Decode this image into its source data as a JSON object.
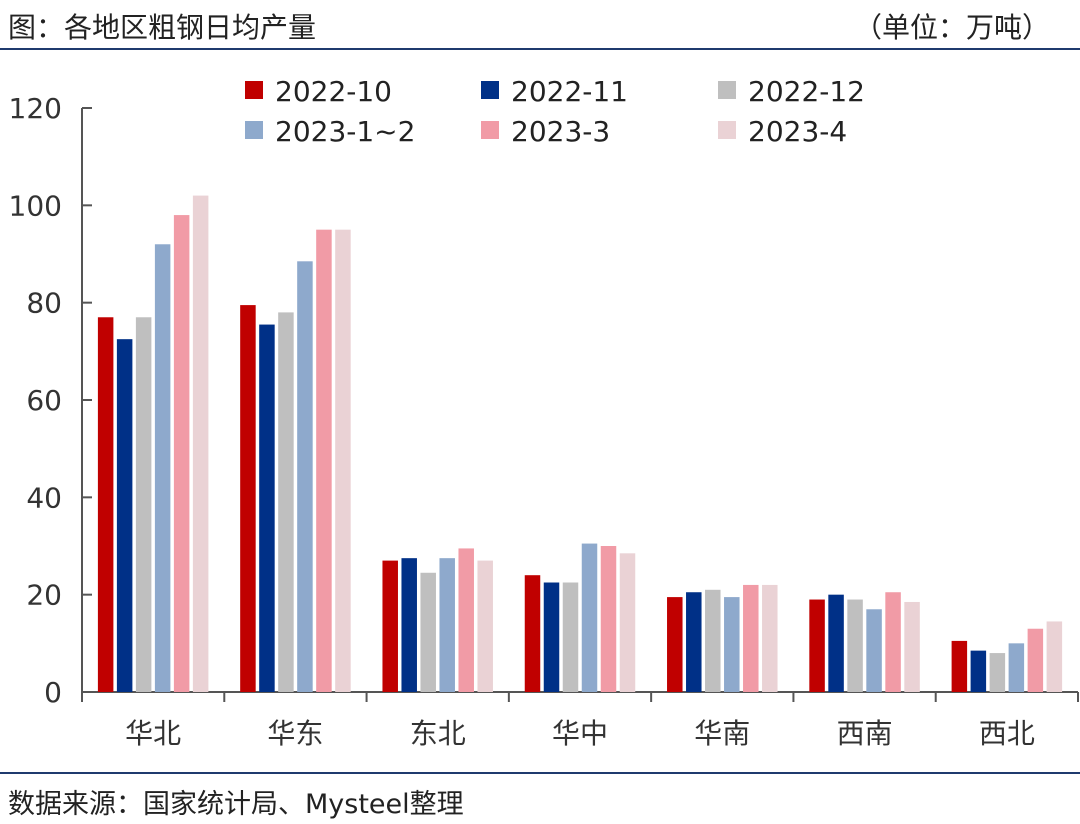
{
  "header": {
    "title": "图：各地区粗钢日均产量",
    "unit": "（单位：万吨）"
  },
  "footer": {
    "source": "数据来源：国家统计局、Mysteel整理"
  },
  "colors": {
    "rule": "#1f3a6e",
    "axis": "#555555",
    "tick_text": "#333333"
  },
  "chart_data": {
    "type": "bar",
    "categories": [
      "华北",
      "华东",
      "东北",
      "华中",
      "华南",
      "西南",
      "西北"
    ],
    "ylim": [
      0,
      120
    ],
    "yticks": [
      0,
      20,
      40,
      60,
      80,
      100,
      120
    ],
    "grid": false,
    "legend_position": "top",
    "series": [
      {
        "name": "2022-10",
        "color": "#c00000",
        "values": [
          77.0,
          79.5,
          27.0,
          24.0,
          19.5,
          19.0,
          10.5
        ]
      },
      {
        "name": "2022-11",
        "color": "#003087",
        "values": [
          72.5,
          75.5,
          27.5,
          22.5,
          20.5,
          20.0,
          8.5
        ]
      },
      {
        "name": "2022-12",
        "color": "#bfbfbf",
        "values": [
          77.0,
          78.0,
          24.5,
          22.5,
          21.0,
          19.0,
          8.0
        ]
      },
      {
        "name": "2023-1~2",
        "color": "#8ea9cc",
        "values": [
          92.0,
          88.5,
          27.5,
          30.5,
          19.5,
          17.0,
          10.0
        ]
      },
      {
        "name": "2023-3",
        "color": "#f19ba6",
        "values": [
          98.0,
          95.0,
          29.5,
          30.0,
          22.0,
          20.5,
          13.0
        ]
      },
      {
        "name": "2023-4",
        "color": "#ead2d5",
        "values": [
          102.0,
          95.0,
          27.0,
          28.5,
          22.0,
          18.5,
          14.5
        ]
      }
    ]
  }
}
